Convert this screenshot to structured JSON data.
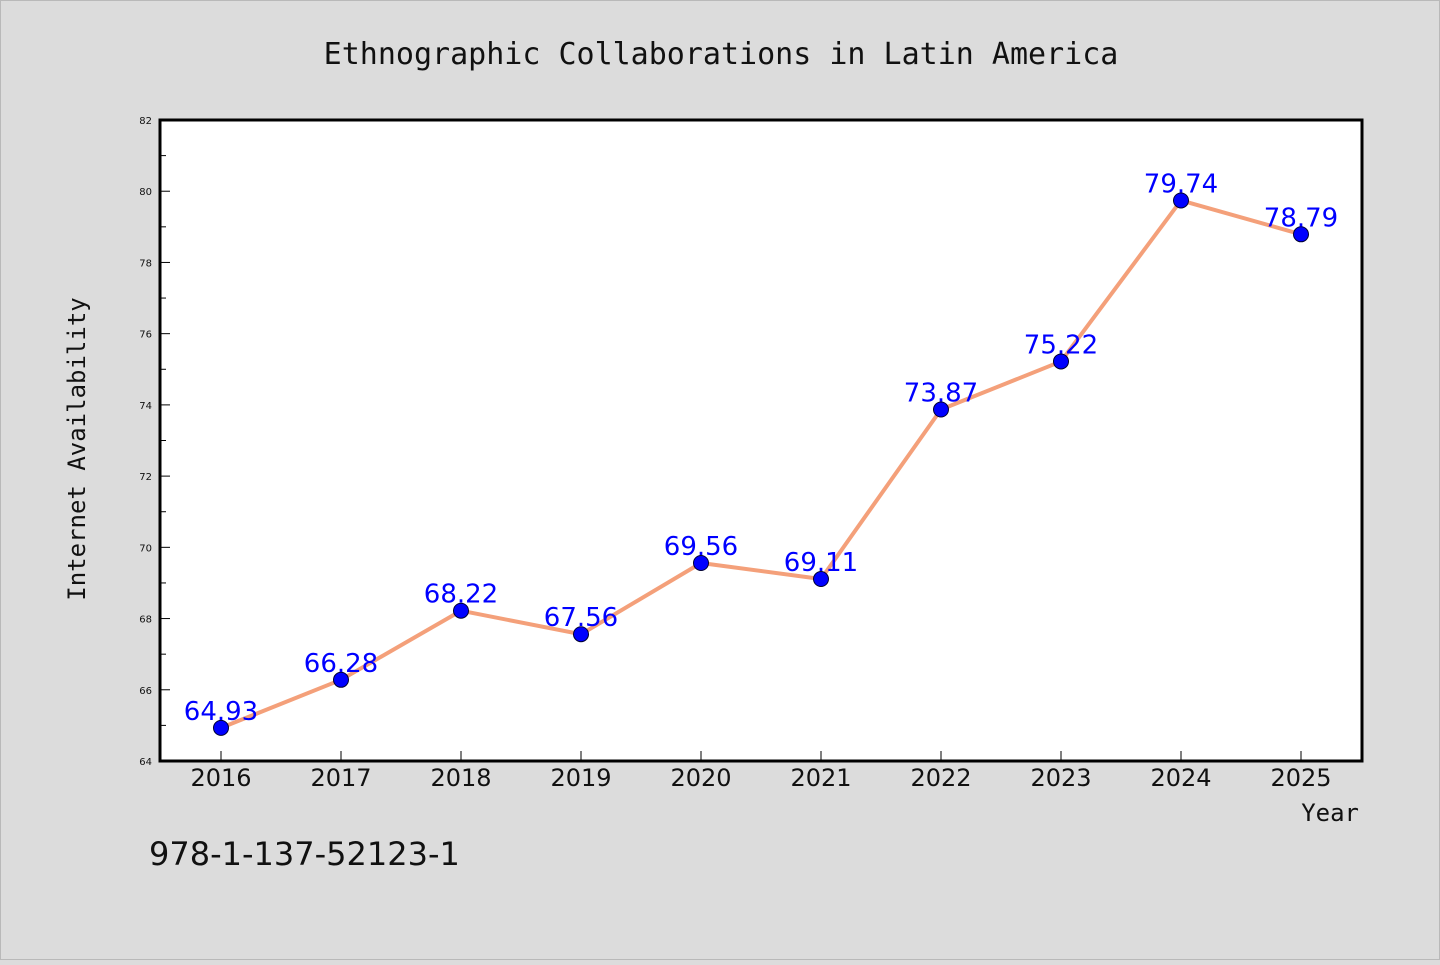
{
  "chart_data": {
    "type": "line",
    "title": "Ethnographic Collaborations in Latin America",
    "xlabel": "Year",
    "ylabel": "Internet Availability",
    "x": [
      "2016",
      "2017",
      "2018",
      "2019",
      "2020",
      "2021",
      "2022",
      "2023",
      "2024",
      "2025"
    ],
    "series": [
      {
        "values": [
          64.93,
          66.28,
          68.22,
          67.56,
          69.56,
          69.11,
          73.87,
          75.22,
          79.74,
          78.79
        ],
        "labels": [
          "64.93",
          "66.28",
          "68.22",
          "67.56",
          "69.56",
          "69.11",
          "73.87",
          "75.22",
          "79.74",
          "78.79"
        ],
        "line_color": "#f4a07a",
        "marker_color": "#0000ff"
      }
    ],
    "ylim": [
      64,
      82
    ],
    "yticks": [
      64,
      66,
      68,
      70,
      72,
      74,
      76,
      78,
      80,
      82
    ],
    "grid": false,
    "legend": false
  },
  "footnote": "978-1-137-52123-1"
}
